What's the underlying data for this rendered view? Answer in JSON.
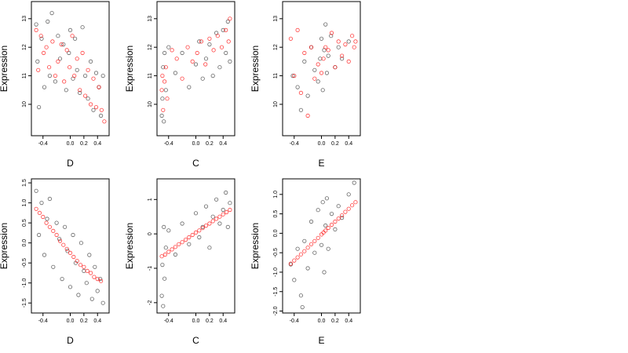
{
  "chart_data": [
    {
      "type": "scatter",
      "row": 0,
      "col": 0,
      "xlabel": "D",
      "ylabel": "Expression",
      "xlim": [
        -0.57,
        0.57
      ],
      "ylim": [
        8.9,
        13.6
      ],
      "x_ticks": [
        -0.4,
        0.0,
        0.2,
        0.4
      ],
      "x_tick_labels": [
        "-0.4",
        "0.0",
        "0.2",
        "0.4"
      ],
      "y_ticks": [
        10,
        11,
        12,
        13
      ],
      "y_tick_labels": [
        "10",
        "11",
        "12",
        "13"
      ],
      "series": [
        {
          "color": "#000000",
          "x": [
            -0.5,
            -0.48,
            -0.46,
            -0.42,
            -0.38,
            -0.33,
            -0.3,
            -0.27,
            -0.22,
            -0.18,
            -0.15,
            -0.1,
            -0.06,
            -0.02,
            0.0,
            0.04,
            0.07,
            0.1,
            0.14,
            0.18,
            0.22,
            0.26,
            0.3,
            0.34,
            0.38,
            0.42,
            0.45,
            0.48
          ],
          "y": [
            12.8,
            11.5,
            9.9,
            12.3,
            10.6,
            12.9,
            11.0,
            13.2,
            10.8,
            12.4,
            11.6,
            12.1,
            10.5,
            11.8,
            12.6,
            10.9,
            12.3,
            11.2,
            10.4,
            12.7,
            11.0,
            10.2,
            11.5,
            9.8,
            11.1,
            10.6,
            9.6,
            11.0
          ]
        },
        {
          "color": "#ff0000",
          "x": [
            -0.5,
            -0.47,
            -0.43,
            -0.39,
            -0.35,
            -0.31,
            -0.26,
            -0.22,
            -0.18,
            -0.13,
            -0.09,
            -0.05,
            -0.01,
            0.03,
            0.06,
            0.1,
            0.14,
            0.18,
            0.22,
            0.26,
            0.3,
            0.34,
            0.38,
            0.42,
            0.46,
            0.5
          ],
          "y": [
            12.6,
            11.2,
            12.4,
            11.8,
            12.0,
            11.3,
            12.2,
            11.0,
            11.5,
            12.1,
            10.8,
            11.9,
            11.3,
            12.4,
            11.0,
            11.6,
            10.5,
            11.8,
            10.3,
            11.2,
            10.0,
            10.9,
            9.9,
            10.6,
            9.8,
            9.4
          ]
        }
      ]
    },
    {
      "type": "scatter",
      "row": 0,
      "col": 1,
      "xlabel": "C",
      "ylabel": "Expression",
      "xlim": [
        -0.57,
        0.57
      ],
      "ylim": [
        8.9,
        13.6
      ],
      "x_ticks": [
        -0.4,
        0.0,
        0.2,
        0.4
      ],
      "x_tick_labels": [
        "-0.4",
        "0.0",
        "0.2",
        "0.4"
      ],
      "y_ticks": [
        10,
        11,
        12,
        13
      ],
      "y_tick_labels": [
        "10",
        "11",
        "12",
        "13"
      ],
      "series": [
        {
          "color": "#000000",
          "x": [
            -0.5,
            -0.49,
            -0.48,
            -0.47,
            -0.46,
            -0.44,
            -0.4,
            -0.3,
            -0.2,
            -0.1,
            0.0,
            0.05,
            0.1,
            0.15,
            0.2,
            0.25,
            0.3,
            0.35,
            0.4,
            0.44,
            0.47,
            0.5
          ],
          "y": [
            9.6,
            10.2,
            11.3,
            9.4,
            11.8,
            10.5,
            12.0,
            11.1,
            11.8,
            10.6,
            11.4,
            12.2,
            10.9,
            11.6,
            12.1,
            11.0,
            12.5,
            11.3,
            12.6,
            11.8,
            12.9,
            11.5
          ]
        },
        {
          "color": "#ff0000",
          "x": [
            -0.5,
            -0.49,
            -0.48,
            -0.46,
            -0.44,
            -0.42,
            -0.35,
            -0.28,
            -0.2,
            -0.12,
            -0.05,
            0.02,
            0.08,
            0.14,
            0.2,
            0.26,
            0.32,
            0.38,
            0.44,
            0.48,
            0.5
          ],
          "y": [
            10.5,
            11.0,
            9.8,
            10.8,
            11.3,
            10.2,
            11.9,
            11.6,
            10.9,
            12.0,
            11.5,
            11.8,
            12.2,
            11.4,
            12.3,
            11.9,
            12.4,
            12.0,
            12.6,
            12.2,
            13.0
          ]
        }
      ]
    },
    {
      "type": "scatter",
      "row": 0,
      "col": 2,
      "xlabel": "E",
      "ylabel": "Expression",
      "xlim": [
        -0.57,
        0.57
      ],
      "ylim": [
        8.9,
        13.6
      ],
      "x_ticks": [
        -0.4,
        0.0,
        0.2,
        0.4
      ],
      "x_tick_labels": [
        "-0.4",
        "0.0",
        "0.2",
        "0.4"
      ],
      "y_ticks": [
        10,
        11,
        12,
        13
      ],
      "y_tick_labels": [
        "10",
        "11",
        "12",
        "13"
      ],
      "series": [
        {
          "color": "#000000",
          "x": [
            -0.42,
            -0.35,
            -0.3,
            -0.25,
            -0.2,
            -0.15,
            -0.1,
            -0.05,
            -0.02,
            0.0,
            0.02,
            0.04,
            0.06,
            0.08,
            0.1,
            0.14,
            0.2,
            0.25,
            0.3,
            0.4
          ],
          "y": [
            11.0,
            10.6,
            9.8,
            11.5,
            10.3,
            12.0,
            11.2,
            10.8,
            11.6,
            12.3,
            10.5,
            11.9,
            12.8,
            11.1,
            11.7,
            12.4,
            11.3,
            12.0,
            11.6,
            12.2
          ]
        },
        {
          "color": "#ff0000",
          "x": [
            -0.45,
            -0.4,
            -0.35,
            -0.3,
            -0.25,
            -0.2,
            -0.15,
            -0.1,
            -0.05,
            0.0,
            0.03,
            0.06,
            0.1,
            0.15,
            0.2,
            0.25,
            0.3,
            0.35,
            0.4,
            0.45,
            0.48,
            0.5
          ],
          "y": [
            12.3,
            11.0,
            12.6,
            10.4,
            11.8,
            9.6,
            12.0,
            10.9,
            11.4,
            11.1,
            11.6,
            12.0,
            11.9,
            12.5,
            11.3,
            12.2,
            11.7,
            12.1,
            11.5,
            12.4,
            12.0,
            12.2
          ]
        }
      ]
    },
    {
      "type": "scatter",
      "row": 1,
      "col": 0,
      "xlabel": "D",
      "ylabel": "Expression",
      "xlim": [
        -0.57,
        0.57
      ],
      "ylim": [
        -1.75,
        1.6
      ],
      "x_ticks": [
        -0.4,
        0.0,
        0.2,
        0.4
      ],
      "x_tick_labels": [
        "-0.4",
        "0.0",
        "0.2",
        "0.4"
      ],
      "y_ticks": [
        -1.5,
        -1.0,
        -0.5,
        0.0,
        0.5,
        1.0,
        1.5
      ],
      "y_tick_labels": [
        "-1.5",
        "-1.0",
        "-0.5",
        "0.0",
        "0.5",
        "1.0",
        "1.5"
      ],
      "series": [
        {
          "color": "#000000",
          "x": [
            -0.5,
            -0.46,
            -0.42,
            -0.38,
            -0.34,
            -0.3,
            -0.25,
            -0.2,
            -0.16,
            -0.12,
            -0.08,
            -0.04,
            0.0,
            0.04,
            0.08,
            0.12,
            0.16,
            0.2,
            0.24,
            0.28,
            0.32,
            0.36,
            0.4,
            0.44,
            0.48
          ],
          "y": [
            1.3,
            0.2,
            1.0,
            -0.3,
            0.6,
            1.1,
            -0.6,
            0.5,
            0.1,
            -0.9,
            0.4,
            -0.2,
            -1.1,
            0.2,
            -0.5,
            -1.3,
            0.0,
            -0.7,
            -1.0,
            -0.3,
            -1.4,
            -0.6,
            -1.2,
            -0.9,
            -1.5
          ]
        },
        {
          "color": "#ff0000",
          "x": [
            -0.5,
            -0.45,
            -0.4,
            -0.35,
            -0.3,
            -0.25,
            -0.2,
            -0.15,
            -0.1,
            -0.05,
            0.0,
            0.05,
            0.1,
            0.15,
            0.2,
            0.25,
            0.3,
            0.35,
            0.4,
            0.45
          ],
          "y": [
            0.85,
            0.75,
            0.65,
            0.5,
            0.4,
            0.3,
            0.2,
            0.05,
            -0.05,
            -0.15,
            -0.25,
            -0.35,
            -0.45,
            -0.55,
            -0.6,
            -0.7,
            -0.75,
            -0.85,
            -0.9,
            -0.95
          ]
        }
      ]
    },
    {
      "type": "scatter",
      "row": 1,
      "col": 1,
      "xlabel": "C",
      "ylabel": "Expression",
      "xlim": [
        -0.57,
        0.57
      ],
      "ylim": [
        -2.3,
        1.6
      ],
      "x_ticks": [
        -0.4,
        0.0,
        0.2,
        0.4
      ],
      "x_tick_labels": [
        "-0.4",
        "0.0",
        "0.2",
        "0.4"
      ],
      "y_ticks": [
        -2,
        -1,
        0,
        1
      ],
      "y_tick_labels": [
        "-2",
        "-1",
        "0",
        "1"
      ],
      "series": [
        {
          "color": "#000000",
          "x": [
            -0.5,
            -0.49,
            -0.48,
            -0.47,
            -0.46,
            -0.44,
            -0.4,
            -0.3,
            -0.2,
            -0.1,
            0.0,
            0.05,
            0.1,
            0.15,
            0.2,
            0.25,
            0.3,
            0.35,
            0.4,
            0.44,
            0.47,
            0.5
          ],
          "y": [
            -1.8,
            -0.9,
            -2.1,
            0.2,
            -1.3,
            -0.4,
            0.1,
            -0.6,
            0.3,
            -0.3,
            0.6,
            -0.1,
            0.2,
            0.8,
            -0.4,
            0.5,
            1.0,
            0.3,
            0.7,
            1.2,
            0.2,
            0.9
          ]
        },
        {
          "color": "#ff0000",
          "x": [
            -0.5,
            -0.45,
            -0.4,
            -0.35,
            -0.3,
            -0.25,
            -0.2,
            -0.15,
            -0.1,
            -0.05,
            0.0,
            0.05,
            0.1,
            0.15,
            0.2,
            0.25,
            0.3,
            0.35,
            0.4,
            0.45,
            0.5
          ],
          "y": [
            -0.65,
            -0.6,
            -0.52,
            -0.45,
            -0.38,
            -0.3,
            -0.24,
            -0.17,
            -0.1,
            -0.03,
            0.04,
            0.1,
            0.17,
            0.24,
            0.3,
            0.37,
            0.44,
            0.5,
            0.57,
            0.63,
            0.7
          ]
        }
      ]
    },
    {
      "type": "scatter",
      "row": 1,
      "col": 2,
      "xlabel": "E",
      "ylabel": "Expression",
      "xlim": [
        -0.57,
        0.57
      ],
      "ylim": [
        -2.05,
        1.4
      ],
      "x_ticks": [
        -0.4,
        0.0,
        0.2,
        0.4
      ],
      "x_tick_labels": [
        "-0.4",
        "0.0",
        "0.2",
        "0.4"
      ],
      "y_ticks": [
        -2.0,
        -1.5,
        -1.0,
        -0.5,
        0.0,
        0.5,
        1.0
      ],
      "y_tick_labels": [
        "-2.0",
        "-1.5",
        "-1.0",
        "-0.5",
        "0.0",
        "0.5",
        "1.0"
      ],
      "series": [
        {
          "color": "#000000",
          "x": [
            -0.45,
            -0.4,
            -0.35,
            -0.3,
            -0.28,
            -0.25,
            -0.2,
            -0.15,
            -0.1,
            -0.05,
            0.0,
            0.02,
            0.04,
            0.06,
            0.08,
            0.1,
            0.15,
            0.2,
            0.25,
            0.3,
            0.4,
            0.48
          ],
          "y": [
            -0.8,
            -1.2,
            -0.4,
            -1.6,
            -1.9,
            -0.2,
            -0.9,
            0.3,
            -0.5,
            0.6,
            -0.3,
            0.8,
            -1.0,
            0.2,
            0.9,
            -0.4,
            0.5,
            0.1,
            0.7,
            0.4,
            1.0,
            1.3
          ]
        },
        {
          "color": "#ff0000",
          "x": [
            -0.45,
            -0.4,
            -0.35,
            -0.3,
            -0.25,
            -0.2,
            -0.15,
            -0.1,
            -0.05,
            0.0,
            0.03,
            0.06,
            0.1,
            0.15,
            0.2,
            0.25,
            0.3,
            0.35,
            0.4,
            0.45,
            0.5
          ],
          "y": [
            -0.78,
            -0.7,
            -0.62,
            -0.54,
            -0.46,
            -0.37,
            -0.28,
            -0.2,
            -0.12,
            -0.03,
            0.02,
            0.07,
            0.14,
            0.22,
            0.3,
            0.38,
            0.46,
            0.55,
            0.63,
            0.72,
            0.8
          ]
        }
      ]
    }
  ]
}
